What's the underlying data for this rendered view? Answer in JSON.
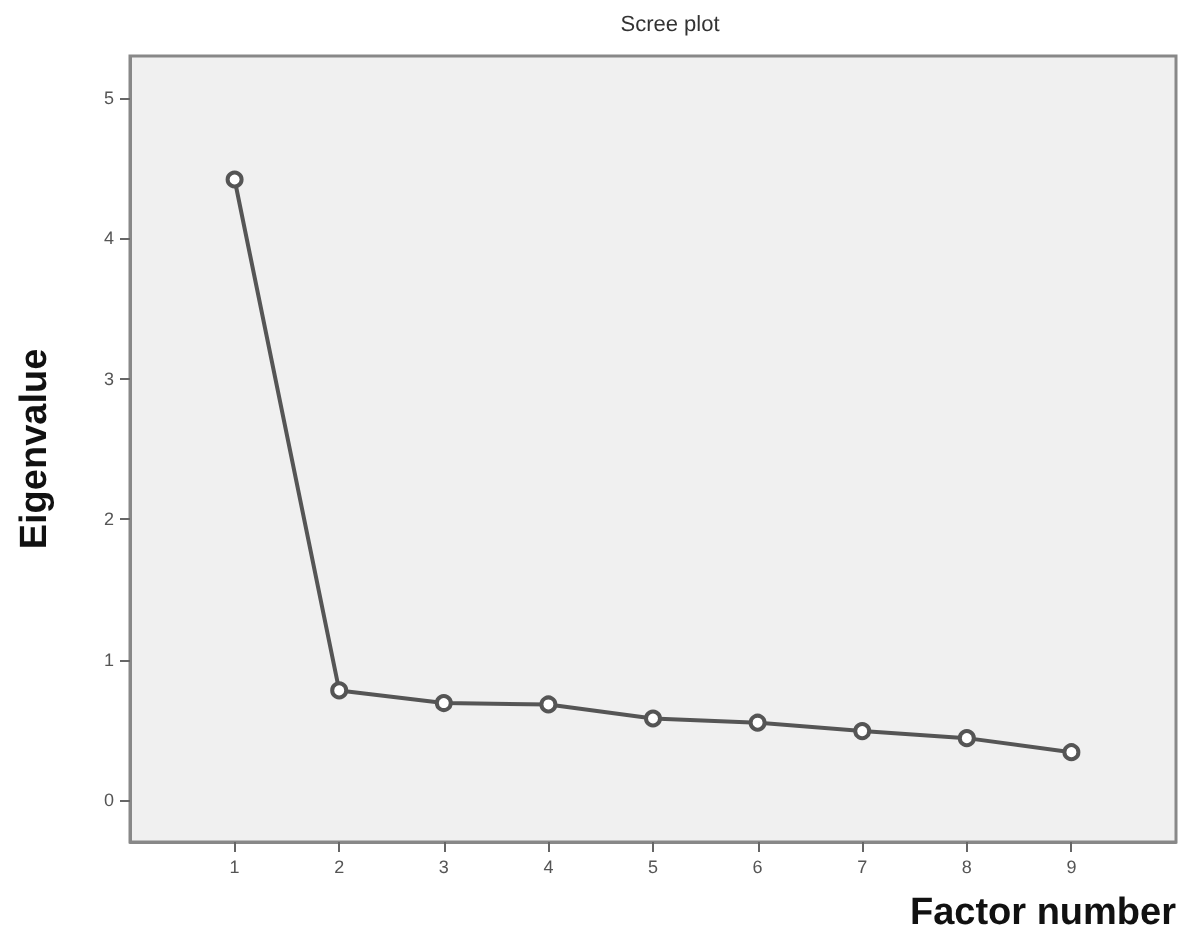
{
  "chart_data": {
    "type": "line",
    "title": "Scree plot",
    "xlabel": "Factor number",
    "ylabel": "Eigenvalue",
    "x": [
      1,
      2,
      3,
      4,
      5,
      6,
      7,
      8,
      9
    ],
    "series": [
      {
        "color": "#555555",
        "values": [
          4.42,
          0.78,
          0.69,
          0.68,
          0.58,
          0.55,
          0.49,
          0.44,
          0.34
        ]
      }
    ],
    "xlim": [
      0,
      10
    ],
    "xticks": [
      1,
      2,
      3,
      4,
      5,
      6,
      7,
      8,
      9
    ],
    "ylim": [
      -0.3,
      5.3
    ],
    "yticks": [
      0,
      1,
      2,
      3,
      4,
      5
    ],
    "grid": false,
    "marker": "circle",
    "line_style": "solid"
  }
}
